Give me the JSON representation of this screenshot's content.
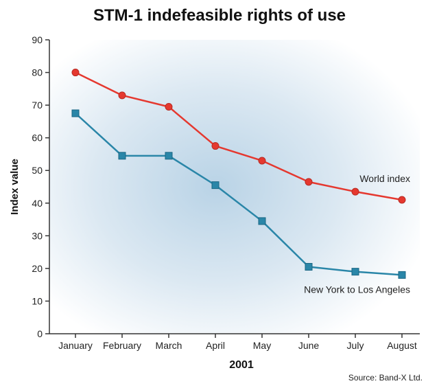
{
  "chart_data": {
    "type": "line",
    "title": "STM-1 indefeasible rights of use",
    "xlabel": "2001",
    "ylabel": "Index value",
    "categories": [
      "January",
      "February",
      "March",
      "April",
      "May",
      "June",
      "July",
      "August"
    ],
    "ylim": [
      0,
      90
    ],
    "yticks": [
      0,
      10,
      20,
      30,
      40,
      50,
      60,
      70,
      80,
      90
    ],
    "grid": false,
    "series": [
      {
        "name": "World index",
        "color": "#e5382f",
        "marker": "circle",
        "values": [
          80,
          73,
          69.5,
          57.5,
          53,
          46.5,
          43.5,
          41
        ]
      },
      {
        "name": "New York to Los Angeles",
        "color": "#2a86a8",
        "marker": "square",
        "values": [
          67.5,
          54.5,
          54.5,
          45.5,
          34.5,
          20.5,
          19,
          18
        ]
      }
    ],
    "source": "Source: Band-X Ltd."
  }
}
